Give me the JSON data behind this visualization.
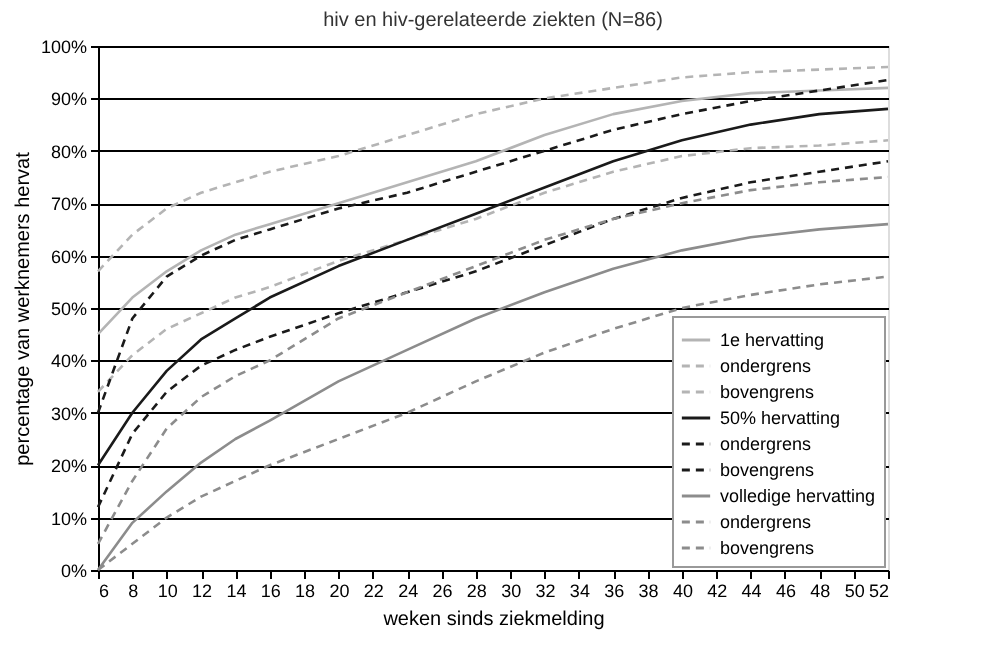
{
  "chart_data": {
    "type": "line",
    "title": "hiv en hiv-gerelateerde ziekten (N=86)",
    "xlabel": "weken sinds ziekmelding",
    "ylabel": "percentage van werknemers hervat",
    "x": [
      6,
      8,
      10,
      12,
      14,
      16,
      20,
      24,
      28,
      32,
      36,
      40,
      44,
      48,
      52
    ],
    "series": [
      {
        "name": "1e hervatting",
        "color": "#b4b4b4",
        "line_style": "solid",
        "values": [
          45,
          52,
          57,
          61,
          64,
          66,
          70,
          74,
          78,
          83,
          87,
          89.5,
          91,
          91.5,
          92
        ]
      },
      {
        "name": "ondergrens",
        "color": "#b4b4b4",
        "line_style": "dashed",
        "values": [
          34,
          41,
          46,
          49,
          52,
          54,
          59,
          63,
          67,
          72,
          76,
          79,
          80.5,
          81,
          82
        ]
      },
      {
        "name": "bovengrens",
        "color": "#b4b4b4",
        "line_style": "dashed",
        "values": [
          57,
          64,
          69,
          72,
          74,
          76,
          79,
          83,
          87,
          90,
          92,
          94,
          95,
          95.5,
          96
        ]
      },
      {
        "name": "50% hervatting",
        "color": "#1a1a1a",
        "line_style": "solid",
        "values": [
          20,
          30,
          38,
          44,
          48,
          52,
          58,
          63,
          68,
          73,
          78,
          82,
          85,
          87,
          88
        ]
      },
      {
        "name": "ondergrens",
        "color": "#1a1a1a",
        "line_style": "dashed",
        "values": [
          12,
          26,
          34,
          39,
          42,
          44.5,
          49,
          53,
          57,
          62,
          67,
          71,
          74,
          76,
          78
        ]
      },
      {
        "name": "bovengrens",
        "color": "#1a1a1a",
        "line_style": "dashed",
        "values": [
          30,
          48,
          56,
          60,
          63,
          65,
          69,
          72,
          76,
          80,
          84,
          87,
          89.5,
          91.5,
          93.5
        ]
      },
      {
        "name": "volledige hervatting",
        "color": "#8c8c8c",
        "line_style": "solid",
        "values": [
          0,
          9,
          15,
          20.5,
          25,
          28.5,
          36,
          42,
          48,
          53,
          57.5,
          61,
          63.5,
          65,
          66
        ]
      },
      {
        "name": "ondergrens",
        "color": "#8c8c8c",
        "line_style": "dashed",
        "values": [
          0,
          5,
          10,
          14,
          17,
          20,
          25,
          30,
          36,
          41.5,
          46,
          50,
          52.5,
          54.5,
          56
        ]
      },
      {
        "name": "bovengrens",
        "color": "#8c8c8c",
        "line_style": "dashed",
        "values": [
          5,
          17,
          27,
          33,
          37,
          40,
          48,
          53,
          58,
          63,
          67,
          70,
          72.5,
          74,
          75
        ]
      }
    ],
    "xlim": [
      6,
      52
    ],
    "xticks": [
      6,
      8,
      10,
      12,
      14,
      16,
      18,
      20,
      22,
      24,
      26,
      28,
      30,
      32,
      34,
      36,
      38,
      40,
      42,
      44,
      46,
      48,
      50,
      52
    ],
    "ylim": [
      0,
      100
    ],
    "yticks": [
      {
        "value": 0,
        "label": "0%"
      },
      {
        "value": 10,
        "label": "10%"
      },
      {
        "value": 20,
        "label": "20%"
      },
      {
        "value": 30,
        "label": "30%"
      },
      {
        "value": 40,
        "label": "40%"
      },
      {
        "value": 50,
        "label": "50%"
      },
      {
        "value": 60,
        "label": "60%"
      },
      {
        "value": 70,
        "label": "70%"
      },
      {
        "value": 80,
        "label": "80%"
      },
      {
        "value": 90,
        "label": "90%"
      },
      {
        "value": 100,
        "label": "100%"
      }
    ],
    "grid": "y",
    "legend": "bottom right",
    "marker": "none"
  }
}
